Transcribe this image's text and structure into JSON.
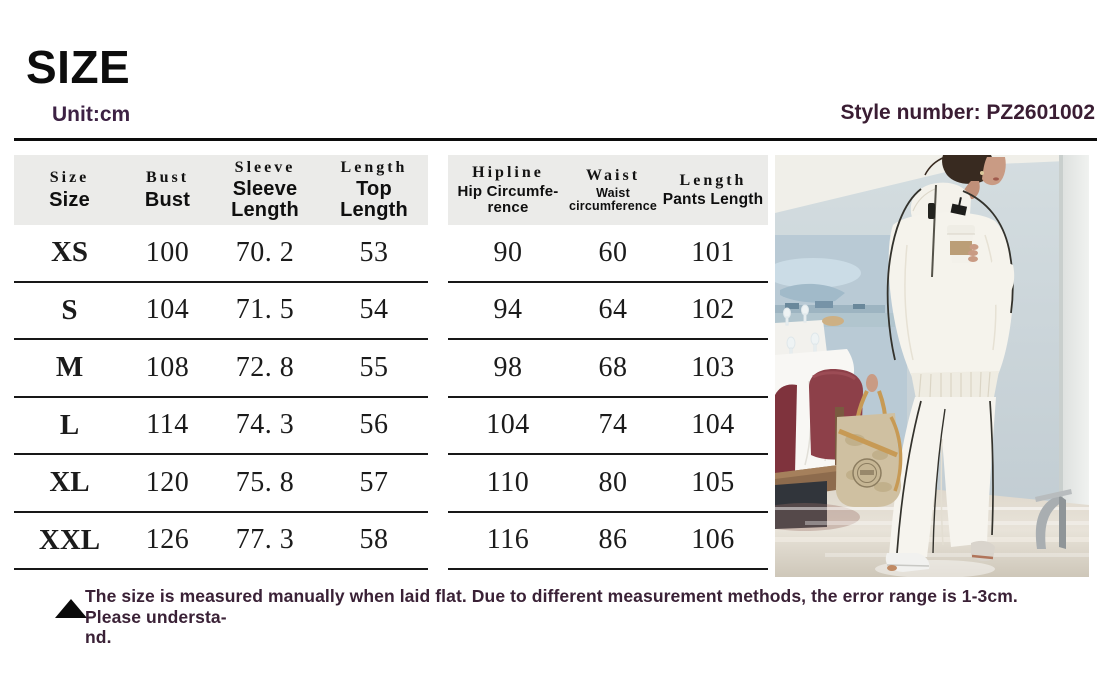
{
  "header": {
    "title": "SIZE",
    "unit": "Unit:cm",
    "style_number": "Style number: PZ2601002"
  },
  "colors": {
    "accent_purple": "#3a1d33",
    "table_header_bg": "#ebebe9",
    "rule_black": "#0c0c0c",
    "chair_maroon": "#8d4049",
    "bag_beige": "#cfc0a1"
  },
  "left_table": {
    "columns": [
      {
        "top": "Size",
        "bottom": "Size"
      },
      {
        "top": "Bust",
        "bottom": "Bust"
      },
      {
        "top": "Sleeve",
        "bottom": "Sleeve\nLength"
      },
      {
        "top": "Length",
        "bottom": "Top Length"
      }
    ],
    "rows": [
      [
        "XS",
        "100",
        "70. 2",
        "53"
      ],
      [
        "S",
        "104",
        "71. 5",
        "54"
      ],
      [
        "M",
        "108",
        "72. 8",
        "55"
      ],
      [
        "L",
        "114",
        "74. 3",
        "56"
      ],
      [
        "XL",
        "120",
        "75. 8",
        "57"
      ],
      [
        "XXL",
        "126",
        "77. 3",
        "58"
      ]
    ]
  },
  "right_table": {
    "columns": [
      {
        "top": "Hipline",
        "bottom": "Hip Circumfe-\nrence"
      },
      {
        "top": "Waist",
        "bottom": "Waist\ncircumference"
      },
      {
        "top": "Length",
        "bottom": "Pants Length"
      }
    ],
    "rows": [
      [
        "90",
        "60",
        "101"
      ],
      [
        "94",
        "64",
        "102"
      ],
      [
        "98",
        "68",
        "103"
      ],
      [
        "104",
        "74",
        "104"
      ],
      [
        "110",
        "80",
        "105"
      ],
      [
        "116",
        "86",
        "106"
      ]
    ]
  },
  "footnote": {
    "text": "The size is measured manually when laid flat. Due to different measurement methods, the error range is 1-3cm. Please understa-\nnd."
  },
  "product_image": {
    "alt": "Model walking in a white half-zip high-collar knit jacket and wide-leg pants with black piping, holding a coffee cup and a beige tote bag in a hotel restaurant"
  }
}
